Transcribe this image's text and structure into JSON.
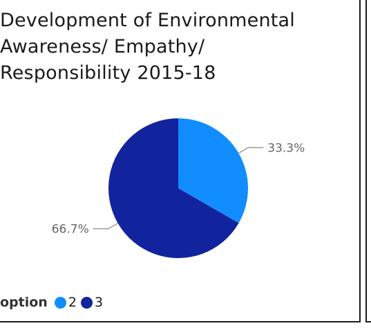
{
  "title_lines": [
    "Development of Environmental",
    "Awareness/ Empathy/",
    "Responsibility 2015-18"
  ],
  "legend": {
    "title": "option",
    "items": [
      {
        "label": "2",
        "color": "#118DFF"
      },
      {
        "label": "3",
        "color": "#12239E"
      }
    ]
  },
  "chart_data": {
    "type": "pie",
    "title": "Development of Environmental Awareness/ Empathy/ Responsibility 2015-18",
    "legend_title": "option",
    "legend_position": "bottom-left",
    "slices": [
      {
        "label": "2",
        "value": 33.3,
        "data_label": "33.3%",
        "color": "#118DFF"
      },
      {
        "label": "3",
        "value": 66.7,
        "data_label": "66.7%",
        "color": "#12239E"
      }
    ]
  }
}
